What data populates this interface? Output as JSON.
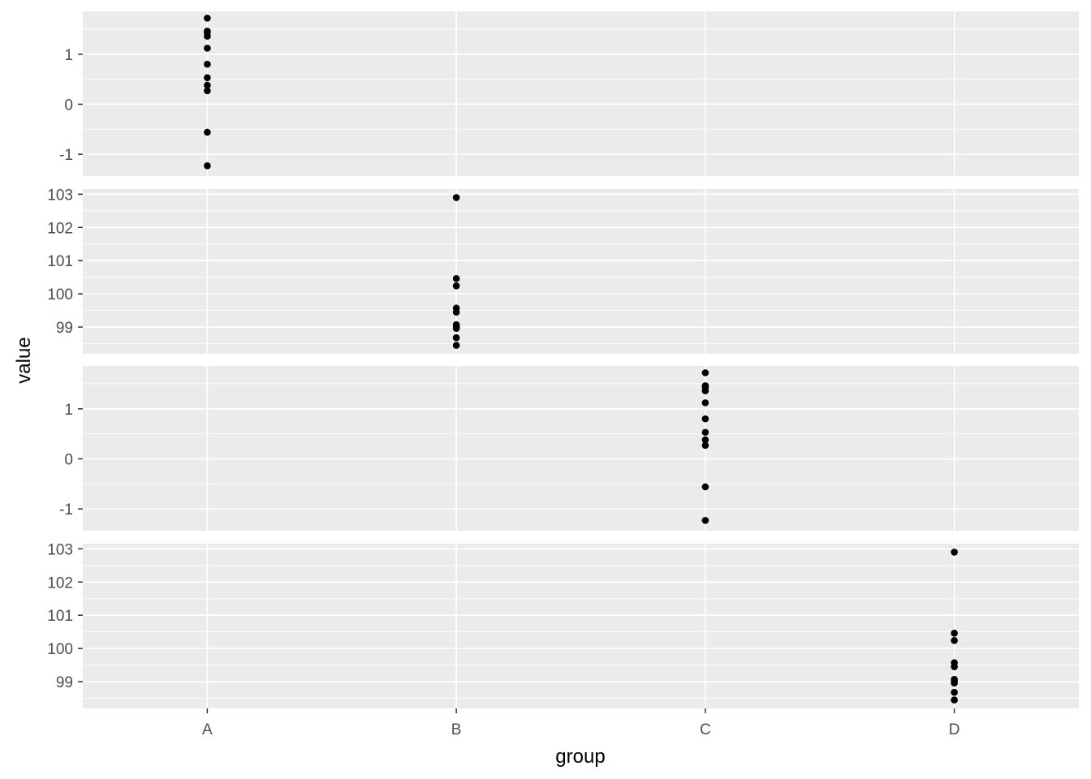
{
  "chart_data": {
    "type": "scatter",
    "xlabel": "group",
    "ylabel": "value",
    "categories": [
      "A",
      "B",
      "C",
      "D"
    ],
    "grid": true,
    "colors": {
      "panel_background": "#ebebeb",
      "grid": "#ffffff",
      "point": "#000000",
      "tick_label": "#4d4d4d",
      "tick_mark": "#333333"
    },
    "panels": [
      {
        "ylim": [
          -1.3,
          1.72
        ],
        "y_ticks": [
          -1,
          0,
          1
        ],
        "y_tick_labels": [
          "-1",
          "0",
          "1"
        ],
        "series": [
          {
            "category": "A",
            "values": [
              1.72,
              1.46,
              1.43,
              1.36,
              1.12,
              0.8,
              0.53,
              0.38,
              0.27,
              -0.56,
              -1.23
            ]
          }
        ]
      },
      {
        "ylim": [
          98.4,
          102.95
        ],
        "y_ticks": [
          99,
          100,
          101,
          102,
          103
        ],
        "y_tick_labels": [
          "99",
          "100",
          "101",
          "102",
          "103"
        ],
        "series": [
          {
            "category": "B",
            "values": [
              102.9,
              100.46,
              100.24,
              99.57,
              99.45,
              99.07,
              99.01,
              98.96,
              98.68,
              98.45
            ]
          }
        ]
      },
      {
        "ylim": [
          -1.3,
          1.72
        ],
        "y_ticks": [
          -1,
          0,
          1
        ],
        "y_tick_labels": [
          "-1",
          "0",
          "1"
        ],
        "series": [
          {
            "category": "C",
            "values": [
              1.72,
              1.46,
              1.43,
              1.36,
              1.12,
              0.8,
              0.53,
              0.38,
              0.27,
              -0.56,
              -1.23
            ]
          }
        ]
      },
      {
        "ylim": [
          98.4,
          102.95
        ],
        "y_ticks": [
          99,
          100,
          101,
          102,
          103
        ],
        "y_tick_labels": [
          "99",
          "100",
          "101",
          "102",
          "103"
        ],
        "series": [
          {
            "category": "D",
            "values": [
              102.9,
              100.46,
              100.24,
              99.57,
              99.45,
              99.07,
              99.01,
              98.96,
              98.68,
              98.45
            ]
          }
        ]
      }
    ]
  }
}
